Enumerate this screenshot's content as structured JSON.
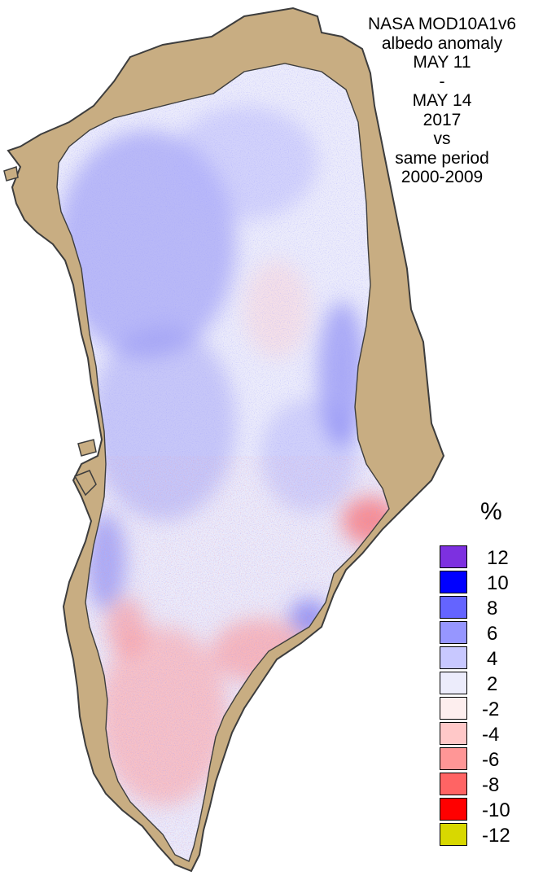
{
  "title_lines": [
    "NASA MOD10A1v6",
    "albedo anomaly",
    "MAY 11",
    "-",
    "MAY 14",
    "2017",
    "vs",
    "same period",
    "2000-2009"
  ],
  "legend": {
    "unit": "%",
    "colors": [
      "#7d30e0",
      "#0000ff",
      "#6464ff",
      "#9696ff",
      "#c8c8ff",
      "#ececfb",
      "#fdeeee",
      "#ffc8c8",
      "#ff9696",
      "#ff6464",
      "#ff0000",
      "#d8d800"
    ],
    "labels": [
      "12",
      "10",
      "8",
      "6",
      "4",
      "2",
      "-2",
      "-4",
      "-6",
      "-8",
      "-10",
      "-12"
    ]
  },
  "map_colors": {
    "land": "#c8ad82",
    "coast": "#3d3d3d",
    "ice_base": "#ececfb"
  }
}
